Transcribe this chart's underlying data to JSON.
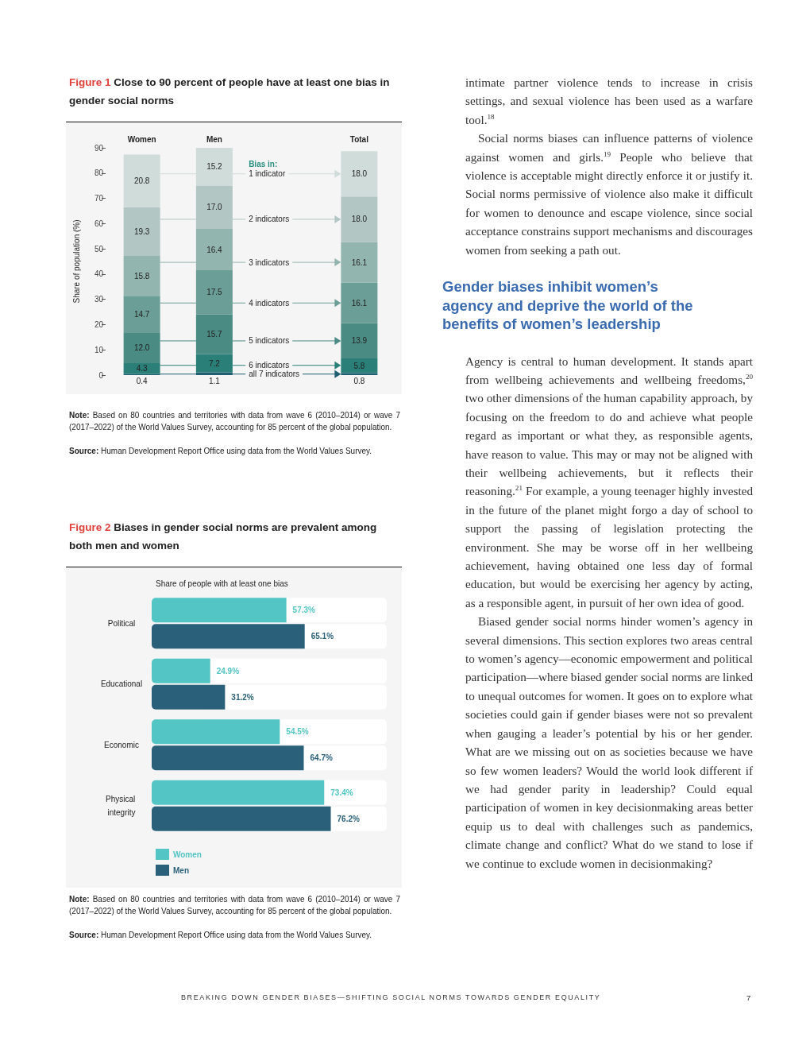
{
  "chart_data": [
    {
      "type": "bar",
      "title": "Figure 1 Close to 90 percent of people have at least one bias in gender social norms",
      "ylabel": "Share of population (%)",
      "legend_title": "Bias in:",
      "categories": [
        "Women",
        "Men",
        null,
        "Total"
      ],
      "stacked": true,
      "legend": "center",
      "ylim": [
        0,
        90
      ],
      "yticks": [
        0,
        10,
        20,
        30,
        40,
        50,
        60,
        70,
        80,
        90
      ],
      "series": [
        {
          "name": "all 7 indicators",
          "color": "#1f5f71",
          "values": [
            0.4,
            1.1,
            null,
            0.8
          ],
          "value_labels": [
            "0.4",
            "1.1",
            null,
            "0.8"
          ]
        },
        {
          "name": "6 indicators",
          "color": "#2a7f78",
          "values": [
            4.3,
            7.2,
            null,
            5.8
          ],
          "value_labels": [
            "4.3",
            "7.2",
            null,
            "5.8"
          ]
        },
        {
          "name": "5 indicators",
          "color": "#4a8b84",
          "values": [
            12.0,
            15.7,
            null,
            13.9
          ],
          "value_labels": [
            "12.0",
            "15.7",
            null,
            "13.9"
          ]
        },
        {
          "name": "4 indicators",
          "color": "#6a9e96",
          "values": [
            14.7,
            17.5,
            null,
            16.1
          ],
          "value_labels": [
            "14.7",
            "17.5",
            null,
            "16.1"
          ]
        },
        {
          "name": "3 indicators",
          "color": "#93b5af",
          "values": [
            15.8,
            16.4,
            null,
            16.1
          ],
          "value_labels": [
            "15.8",
            "16.4",
            null,
            "16.1"
          ]
        },
        {
          "name": "2 indicators",
          "color": "#b2c7c4",
          "values": [
            19.3,
            17.0,
            null,
            18.0
          ],
          "value_labels": [
            "19.3",
            "17.0",
            null,
            "18.0"
          ]
        },
        {
          "name": "1 indicator",
          "color": "#cfdcda",
          "values": [
            20.8,
            15.2,
            null,
            18.0
          ],
          "value_labels": [
            "20.8",
            "15.2",
            null,
            "18.0"
          ]
        }
      ],
      "annotations": [
        "Note: Based on 80 countries and territories with data from wave 6 (2010–2014) or wave 7 (2017–2022) of the World Values Survey, accounting for 85 percent of the global population.",
        "Source: Human Development Report Office using data from the World Values Survey."
      ]
    },
    {
      "type": "bar",
      "orientation": "horizontal",
      "title": "Figure 2 Biases in gender social norms are prevalent among both men and women",
      "subtitle": "Share of people with at least one bias",
      "categories": [
        "Political",
        "Educational",
        "Economic",
        "Physical integrity"
      ],
      "xlim": [
        0,
        100
      ],
      "legend": "bottom left",
      "series": [
        {
          "name": "Women",
          "color": "#52c5c4",
          "values": [
            57.3,
            24.9,
            54.5,
            73.4
          ],
          "value_labels": [
            "57.3%",
            "24.9%",
            "54.5%",
            "73.4%"
          ]
        },
        {
          "name": "Men",
          "color": "#2a6079",
          "values": [
            65.1,
            31.2,
            64.7,
            76.2
          ],
          "value_labels": [
            "65.1%",
            "31.2%",
            "64.7%",
            "76.2%"
          ]
        }
      ],
      "annotations": [
        "Note: Based on 80 countries and territories with data from wave 6 (2010–2014) or wave 7 (2017–2022) of the World Values Survey, accounting for 85 percent of the global population.",
        "Source: Human Development Report Office using data from the World Values Survey."
      ]
    },
    {
      "type": "other",
      "title": "Gender biases inhibit women’s agency and deprive the world of the benefits of women’s leadership",
      "annotations": [
        "intimate partner violence tends to increase in crisis settings, and sexual violence has been used as a warfare tool.$^{18}$",
        "Social norms biases can influence patterns of violence against women and girls.$^{19}$ People who believe that violence is acceptable might directly enforce it or justify it. Social norms permissive of violence also make it difficult for women to denounce and escape violence, since social acceptance constrains support mechanisms and discourages women from seeking a path out.",
        "Agency is central to human development. It stands apart from wellbeing achievements and wellbeing freedoms,$^{20}$ two other dimensions of the human capability approach, by focusing on the freedom to do and achieve what people regard as important or what they, as responsible agents, have reason to value. This may or may not be aligned with their wellbeing achievements, but it reflects their reasoning.$^{21}$ For example, a young teenager highly invested in the future of the planet might forgo a day of school to support the passing of legislation protecting the environment. She may be worse off in her wellbeing achievement, having obtained one less day of formal education, but would be exercising her agency by acting, as a responsible agent, in pursuit of her own idea of good.",
        "Biased gender social norms hinder women’s agency in several dimensions. This section explores two areas central to women’s agency—economic empowerment and political participation—where biased gender social norms are linked to unequal outcomes for women. It goes on to explore what societies could gain if gender biases were not so prevalent when gauging a leader’s potential by his or her gender. What are we missing out on as societies because we have so few women leaders? Would the world look different if we had gender parity in leadership? Could equal participation of women in key decisionmaking areas better equip us to deal with challenges such as pandemics, climate change and conflict? What do we stand to lose if we continue to exclude women in decisionmaking?",
        "BREAKING DOWN GENDER BIASES—SHIFTING SOCIAL NORMS TOWARDS GENDER EQUALITY",
        "7"
      ]
    }
  ]
}
